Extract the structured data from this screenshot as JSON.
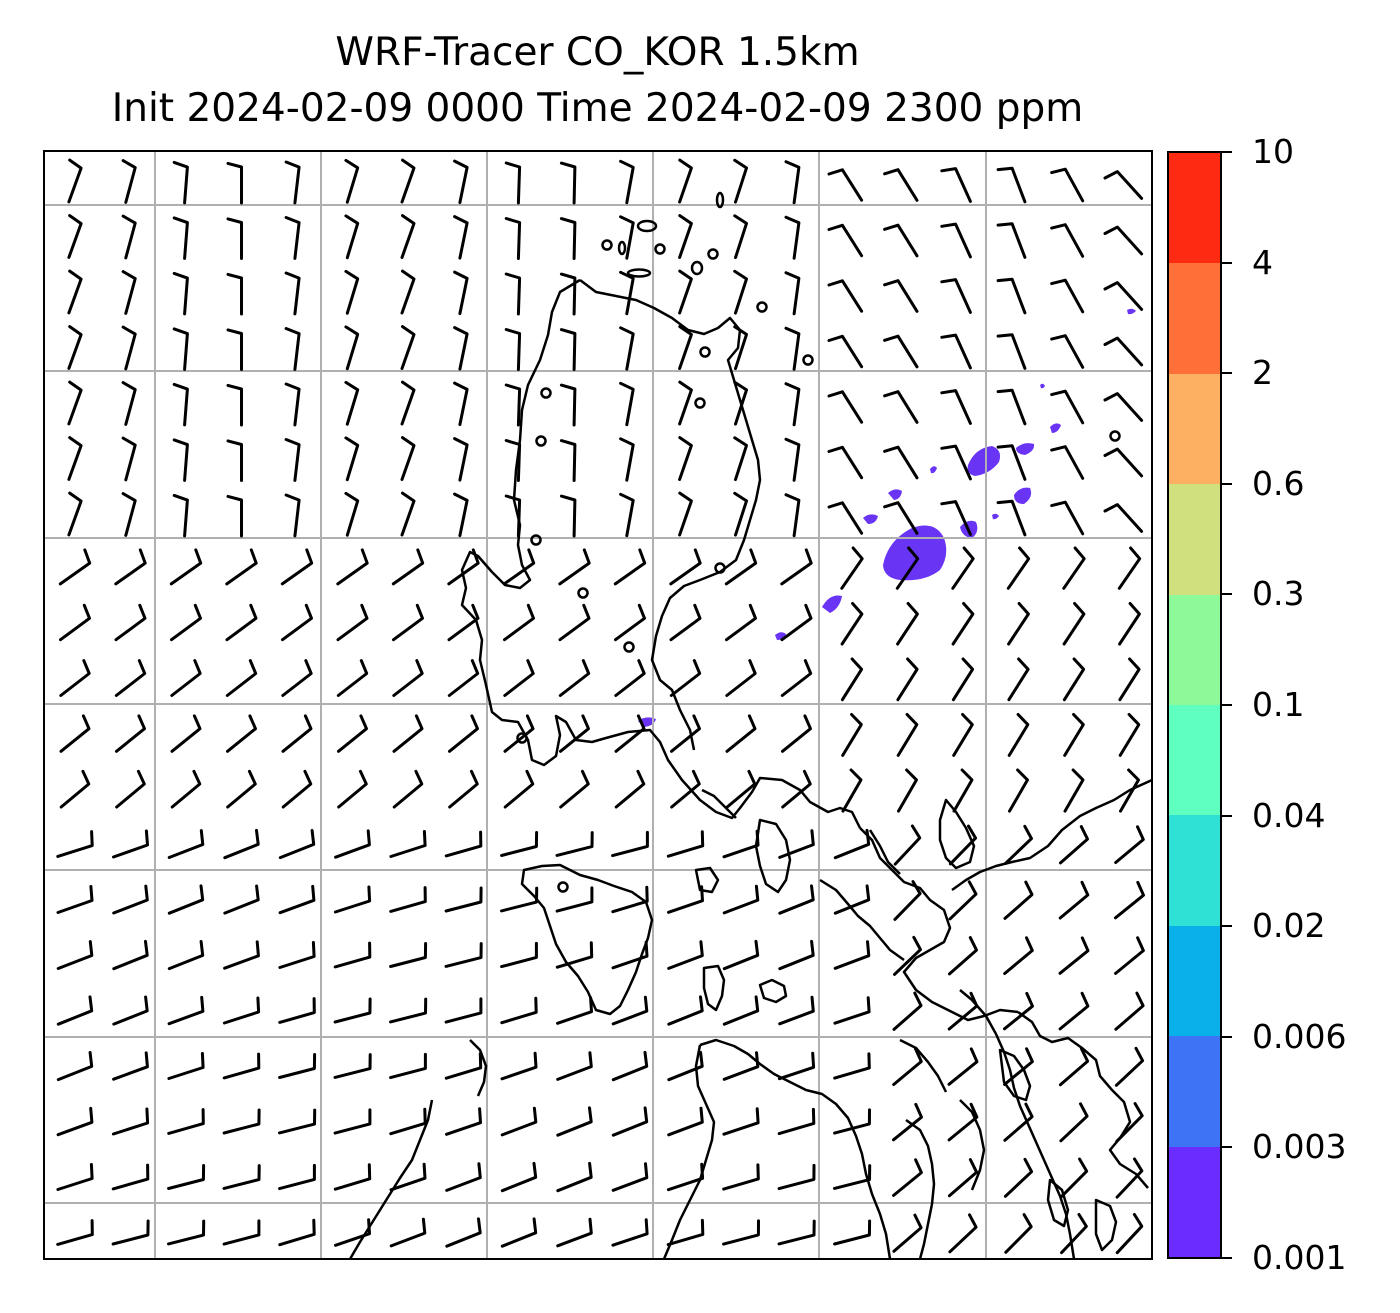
{
  "title_line1": "WRF-Tracer CO_KOR 1.5km",
  "title_line2": "Init 2024-02-09 0000 Time 2024-02-09 2300 ppm",
  "colorbar": {
    "ticks": [
      "0.001",
      "0.003",
      "0.006",
      "0.02",
      "0.04",
      "0.1",
      "0.3",
      "0.6",
      "2",
      "4",
      "10"
    ],
    "colors": [
      "#6a2cff",
      "#3f73f5",
      "#0ab0ea",
      "#2fe0d5",
      "#5fffc0",
      "#8ef998",
      "#d1e07e",
      "#fdaf62",
      "#fe7038",
      "#fe2a12"
    ]
  },
  "plume_color": "#6a34f5",
  "map": {
    "features": [
      "coastline",
      "gridlines",
      "wind-barbs",
      "tracer-concentration"
    ]
  }
}
